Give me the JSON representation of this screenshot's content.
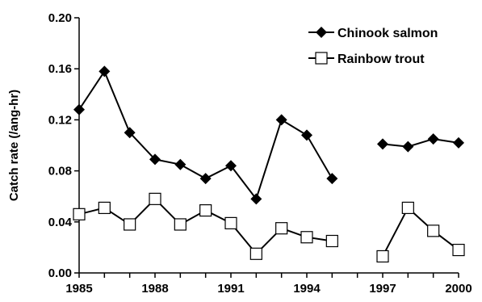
{
  "chart_data": {
    "type": "line",
    "title": "",
    "xlabel": "",
    "ylabel": "Catch rate (/ang-hr)",
    "xlim": [
      1985,
      2000
    ],
    "ylim": [
      0.0,
      0.2
    ],
    "x_ticks": [
      "1985",
      "1988",
      "1991",
      "1994",
      "1997",
      "2000"
    ],
    "y_ticks": [
      "0.00",
      "0.04",
      "0.08",
      "0.12",
      "0.16",
      "0.20"
    ],
    "grid": false,
    "legend_position": "top-right",
    "series": [
      {
        "name": "Chinook salmon",
        "marker": "filled-diamond",
        "color": "#000000",
        "x": [
          1985,
          1986,
          1987,
          1988,
          1989,
          1990,
          1991,
          1992,
          1993,
          1994,
          1995,
          1996,
          1997,
          1998,
          1999,
          2000
        ],
        "y": [
          0.128,
          0.158,
          0.11,
          0.089,
          0.085,
          0.074,
          0.084,
          0.058,
          0.12,
          0.108,
          0.074,
          null,
          0.101,
          0.099,
          0.105,
          0.102
        ]
      },
      {
        "name": "Rainbow trout",
        "marker": "open-square",
        "color": "#000000",
        "x": [
          1985,
          1986,
          1987,
          1988,
          1989,
          1990,
          1991,
          1992,
          1993,
          1994,
          1995,
          1996,
          1997,
          1998,
          1999,
          2000
        ],
        "y": [
          0.046,
          0.051,
          0.038,
          0.058,
          0.038,
          0.049,
          0.039,
          0.015,
          0.035,
          0.028,
          0.025,
          null,
          0.013,
          0.051,
          0.033,
          0.018
        ]
      }
    ]
  }
}
